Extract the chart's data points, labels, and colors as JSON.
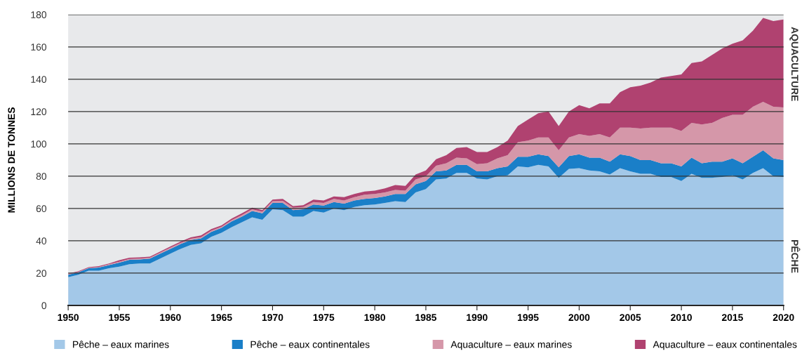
{
  "chart_data": {
    "type": "area",
    "stacked": true,
    "ylabel": "MILLIONS DE TONNES",
    "x": [
      1950,
      1951,
      1952,
      1953,
      1954,
      1955,
      1956,
      1957,
      1958,
      1959,
      1960,
      1961,
      1962,
      1963,
      1964,
      1965,
      1966,
      1967,
      1968,
      1969,
      1970,
      1971,
      1972,
      1973,
      1974,
      1975,
      1976,
      1977,
      1978,
      1979,
      1980,
      1981,
      1982,
      1983,
      1984,
      1985,
      1986,
      1987,
      1988,
      1989,
      1990,
      1991,
      1992,
      1993,
      1994,
      1995,
      1996,
      1997,
      1998,
      1999,
      2000,
      2001,
      2002,
      2003,
      2004,
      2005,
      2006,
      2007,
      2008,
      2009,
      2010,
      2011,
      2012,
      2013,
      2014,
      2015,
      2016,
      2017,
      2018,
      2019,
      2020
    ],
    "series": [
      {
        "name": "Pêche – eaux marines",
        "color": "#a3c8e8",
        "values": [
          17.5,
          19,
          21.5,
          21.5,
          23,
          24,
          25.5,
          26,
          26,
          29,
          32,
          35,
          37.5,
          38.5,
          42.5,
          45,
          48.5,
          51.5,
          54.5,
          53,
          59.5,
          59,
          55,
          55,
          58.5,
          57.5,
          60,
          59,
          61,
          62,
          62.5,
          63.5,
          64.5,
          64,
          70,
          72,
          78,
          78.5,
          82,
          82,
          78.5,
          78,
          80,
          80.5,
          86,
          85.5,
          87,
          86,
          79,
          84.5,
          85,
          83.5,
          83,
          81,
          85,
          83,
          81.5,
          81.5,
          79.5,
          79.5,
          77,
          81.5,
          79,
          79,
          79.5,
          80.5,
          78,
          82,
          85,
          80,
          79.5
        ]
      },
      {
        "name": "Pêche – eaux continentales",
        "color": "#1a7fc8",
        "values": [
          1.5,
          1.5,
          1.5,
          2,
          2,
          2.5,
          2.7,
          2.5,
          3,
          3,
          3,
          3,
          3,
          3,
          3,
          3,
          3.5,
          3.5,
          4,
          4,
          4,
          4.5,
          4,
          4.5,
          4,
          4.3,
          4,
          4,
          4,
          4,
          4,
          4,
          4.5,
          5,
          5,
          5,
          5,
          5,
          5,
          5,
          4.5,
          5,
          5,
          5.5,
          6,
          6.5,
          6.5,
          6.5,
          6.5,
          8,
          8.5,
          8,
          8.5,
          8,
          8.5,
          9.5,
          8.5,
          8.5,
          8.5,
          8.5,
          9,
          10,
          9,
          10,
          9.5,
          10.5,
          10,
          10,
          11,
          11,
          10.5
        ]
      },
      {
        "name": "Aquaculture – eaux marines",
        "color": "#d597a9",
        "values": [
          0.3,
          0.3,
          0.3,
          0.3,
          0.5,
          0.5,
          0.6,
          0.5,
          0.5,
          0.7,
          0.7,
          0.7,
          0.8,
          0.8,
          0.8,
          0.7,
          0.8,
          1,
          1,
          1,
          1,
          1.3,
          1.5,
          1.5,
          1.5,
          1.7,
          2,
          2,
          2,
          2.5,
          2.5,
          2.5,
          2.5,
          2,
          3,
          3,
          3.5,
          4.5,
          4.5,
          4,
          4.5,
          5,
          6,
          7,
          9,
          10,
          10.5,
          11.5,
          10.5,
          11.5,
          12.5,
          13.5,
          14.5,
          15,
          16.5,
          17.5,
          19.5,
          20,
          22,
          22,
          22,
          21.5,
          24,
          24,
          27,
          27,
          30,
          31,
          30,
          32,
          32.5
        ]
      },
      {
        "name": "Aquaculture – eaux continentales",
        "color": "#b04270",
        "values": [
          0.4,
          0.4,
          0.4,
          0.5,
          0.5,
          1,
          0.8,
          0.8,
          0.7,
          0.7,
          0.8,
          0.8,
          0.9,
          1,
          1,
          0.8,
          1,
          1,
          1,
          1,
          1,
          1.2,
          1,
          1,
          1.5,
          1.5,
          1.5,
          2,
          2,
          2,
          2,
          2.5,
          3,
          3,
          3,
          3.5,
          4,
          5,
          6,
          7,
          7.5,
          7,
          7,
          9,
          10,
          13,
          15,
          16,
          15,
          16,
          18,
          17,
          19,
          21,
          22,
          25,
          26.5,
          28,
          31,
          32,
          35,
          37,
          39,
          42,
          43,
          44,
          46,
          47,
          52,
          53,
          54.5
        ]
      }
    ],
    "xlim": [
      1950,
      2020
    ],
    "xticks": [
      1950,
      1955,
      1960,
      1965,
      1970,
      1975,
      1980,
      1985,
      1990,
      1995,
      2000,
      2005,
      2010,
      2015,
      2020
    ],
    "ylim": [
      0,
      180
    ],
    "yticks": [
      0,
      20,
      40,
      60,
      80,
      100,
      120,
      140,
      160,
      180
    ],
    "grid": "y",
    "legend": "bottom",
    "annotations": [
      "AQUACULTURE",
      "PÊCHE"
    ]
  }
}
